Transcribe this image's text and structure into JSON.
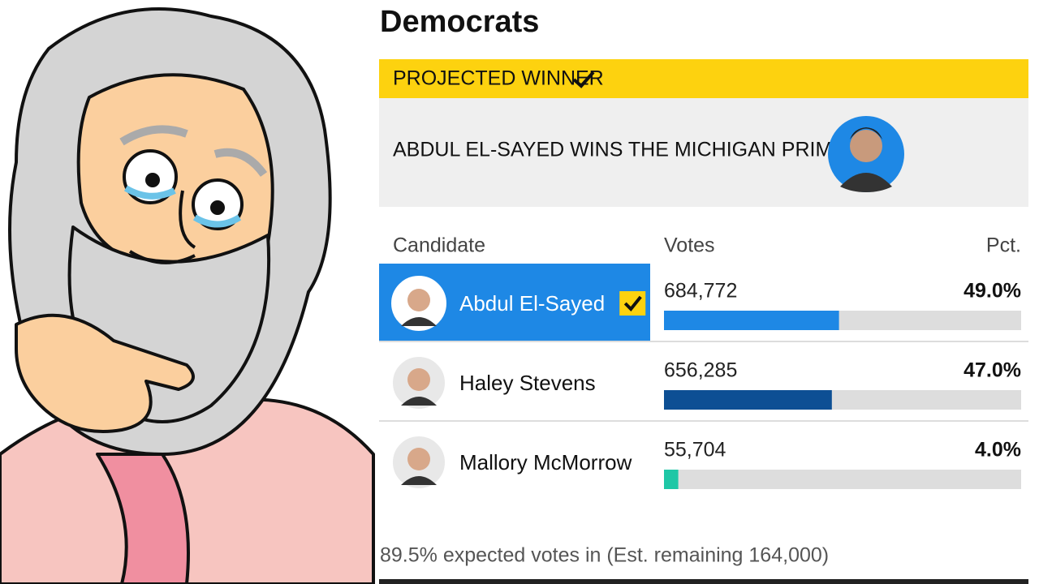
{
  "header": {
    "title": "Democrats"
  },
  "banner": {
    "label": "PROJECTED WINNER",
    "headline": "ABDUL EL-SAYED WINS THE MICHIGAN PRIMARY"
  },
  "table": {
    "columns": [
      "Candidate",
      "Votes",
      "Pct."
    ],
    "bar_max": 100,
    "rows": [
      {
        "name": "Abdul El-Sayed",
        "votes": "684,772",
        "pct": {
          "value": 49,
          "label": "49.0%"
        },
        "bar_color": "#1e88e5",
        "winner": true
      },
      {
        "name": "Haley Stevens",
        "votes": "656,285",
        "pct": {
          "value": 47,
          "label": "47.0%"
        },
        "bar_color": "#0d4f94",
        "winner": false
      },
      {
        "name": "Mallory McMorrow",
        "votes": "55,704",
        "pct": {
          "value": 4,
          "label": "4.0%"
        },
        "bar_color": "#1fc7a6",
        "winner": false
      }
    ]
  },
  "footer": {
    "text": "89.5% expected votes in (Est. remaining 164,000)"
  }
}
